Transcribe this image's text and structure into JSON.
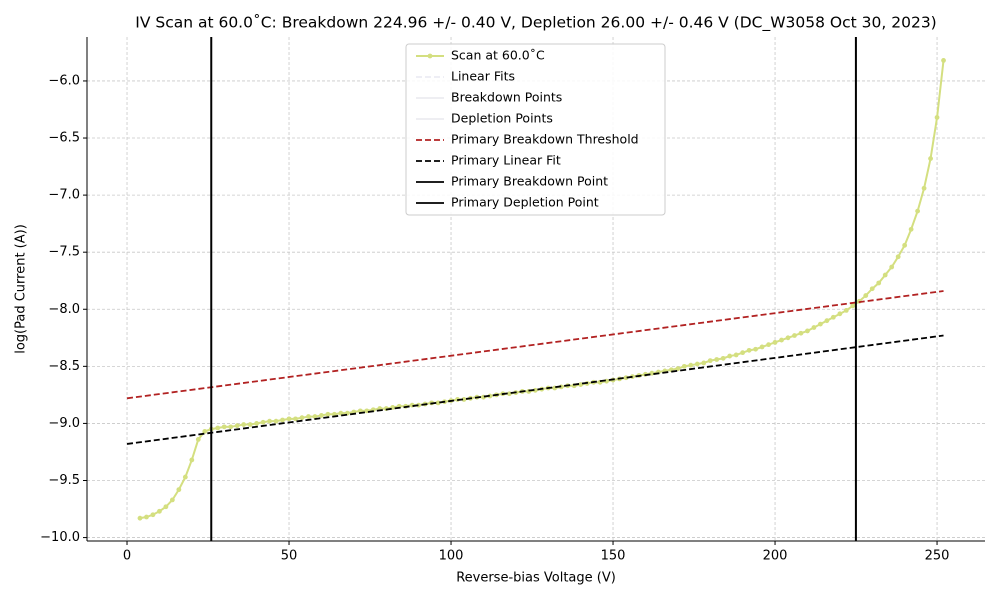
{
  "chart_data": {
    "type": "line",
    "title": "IV Scan at 60.0˚C: Breakdown 224.96 +/- 0.40 V, Depletion 26.00 +/- 0.46 V (DC_W3058 Oct 30, 2023)",
    "xlabel": "Reverse-bias Voltage (V)",
    "ylabel": "log(Pad Current (A))",
    "xlim": [
      -12.35,
      264.8
    ],
    "ylim": [
      -10.03,
      -5.615
    ],
    "xticks": [
      0,
      50,
      100,
      150,
      200,
      250
    ],
    "yticks": [
      {
        "value": -10.0,
        "label": "−10.0"
      },
      {
        "value": -9.5,
        "label": "−9.5"
      },
      {
        "value": -9.0,
        "label": "−9.0"
      },
      {
        "value": -8.5,
        "label": "−8.5"
      },
      {
        "value": -8.0,
        "label": "−8.0"
      },
      {
        "value": -7.5,
        "label": "−7.5"
      },
      {
        "value": -7.0,
        "label": "−7.0"
      },
      {
        "value": -6.5,
        "label": "−6.5"
      },
      {
        "value": -6.0,
        "label": "−6.0"
      }
    ],
    "grid": true,
    "legend": "upper center",
    "series": [
      {
        "name": "Scan at 60.0˚C",
        "color": "#d4df80",
        "marker": true,
        "x": [
          4,
          6,
          8,
          10,
          12,
          14,
          16,
          18,
          20,
          22,
          24,
          26,
          28,
          30,
          32,
          34,
          36,
          38,
          40,
          42,
          44,
          46,
          48,
          50,
          52,
          54,
          56,
          58,
          60,
          62,
          64,
          66,
          68,
          70,
          72,
          74,
          76,
          78,
          80,
          82,
          84,
          86,
          88,
          90,
          92,
          94,
          96,
          98,
          100,
          102,
          104,
          106,
          108,
          110,
          112,
          114,
          116,
          118,
          120,
          122,
          124,
          126,
          128,
          130,
          132,
          134,
          136,
          138,
          140,
          142,
          144,
          146,
          148,
          150,
          152,
          154,
          156,
          158,
          160,
          162,
          164,
          166,
          168,
          170,
          172,
          174,
          176,
          178,
          180,
          182,
          184,
          186,
          188,
          190,
          192,
          194,
          196,
          198,
          200,
          202,
          204,
          206,
          208,
          210,
          212,
          214,
          216,
          218,
          220,
          222,
          224,
          226,
          228,
          230,
          232,
          234,
          236,
          238,
          240,
          242,
          244,
          246,
          248,
          250,
          252
        ],
        "values": [
          -9.83,
          -9.82,
          -9.8,
          -9.77,
          -9.73,
          -9.67,
          -9.58,
          -9.47,
          -9.32,
          -9.14,
          -9.07,
          -9.05,
          -9.04,
          -9.03,
          -9.03,
          -9.02,
          -9.01,
          -9.01,
          -9.0,
          -8.99,
          -8.98,
          -8.98,
          -8.97,
          -8.96,
          -8.96,
          -8.95,
          -8.94,
          -8.94,
          -8.93,
          -8.92,
          -8.92,
          -8.91,
          -8.91,
          -8.9,
          -8.89,
          -8.89,
          -8.88,
          -8.87,
          -8.87,
          -8.86,
          -8.85,
          -8.85,
          -8.84,
          -8.84,
          -8.83,
          -8.82,
          -8.82,
          -8.81,
          -8.8,
          -8.79,
          -8.79,
          -8.78,
          -8.77,
          -8.77,
          -8.76,
          -8.75,
          -8.74,
          -8.74,
          -8.73,
          -8.72,
          -8.72,
          -8.71,
          -8.7,
          -8.69,
          -8.69,
          -8.68,
          -8.67,
          -8.67,
          -8.66,
          -8.65,
          -8.64,
          -8.64,
          -8.63,
          -8.62,
          -8.61,
          -8.6,
          -8.59,
          -8.58,
          -8.57,
          -8.56,
          -8.55,
          -8.54,
          -8.53,
          -8.52,
          -8.5,
          -8.49,
          -8.48,
          -8.47,
          -8.45,
          -8.44,
          -8.43,
          -8.41,
          -8.4,
          -8.38,
          -8.36,
          -8.35,
          -8.33,
          -8.31,
          -8.29,
          -8.27,
          -8.25,
          -8.23,
          -8.21,
          -8.19,
          -8.16,
          -8.13,
          -8.1,
          -8.07,
          -8.04,
          -8.01,
          -7.97,
          -7.93,
          -7.88,
          -7.82,
          -7.77,
          -7.7,
          -7.63,
          -7.54,
          -7.44,
          -7.3,
          -7.14,
          -6.94,
          -6.68,
          -6.32,
          -5.82
        ]
      },
      {
        "name": "Linear Fits",
        "color": "#ececf4",
        "dashed": true
      },
      {
        "name": "Breakdown Points",
        "color": "#ececf0"
      },
      {
        "name": "Depletion Points",
        "color": "#ececf0"
      },
      {
        "name": "Primary Breakdown Threshold",
        "color": "#b22222",
        "dashed": true,
        "x": [
          0,
          252
        ],
        "values": [
          -8.78,
          -7.84
        ]
      },
      {
        "name": "Primary Linear Fit",
        "color": "#000000",
        "dashed": true,
        "x": [
          0,
          252
        ],
        "values": [
          -9.18,
          -8.23
        ]
      },
      {
        "name": "Primary Breakdown Point",
        "color": "#000000",
        "vline": 224.96
      },
      {
        "name": "Primary Depletion Point",
        "color": "#000000",
        "vline": 26.0
      }
    ]
  }
}
